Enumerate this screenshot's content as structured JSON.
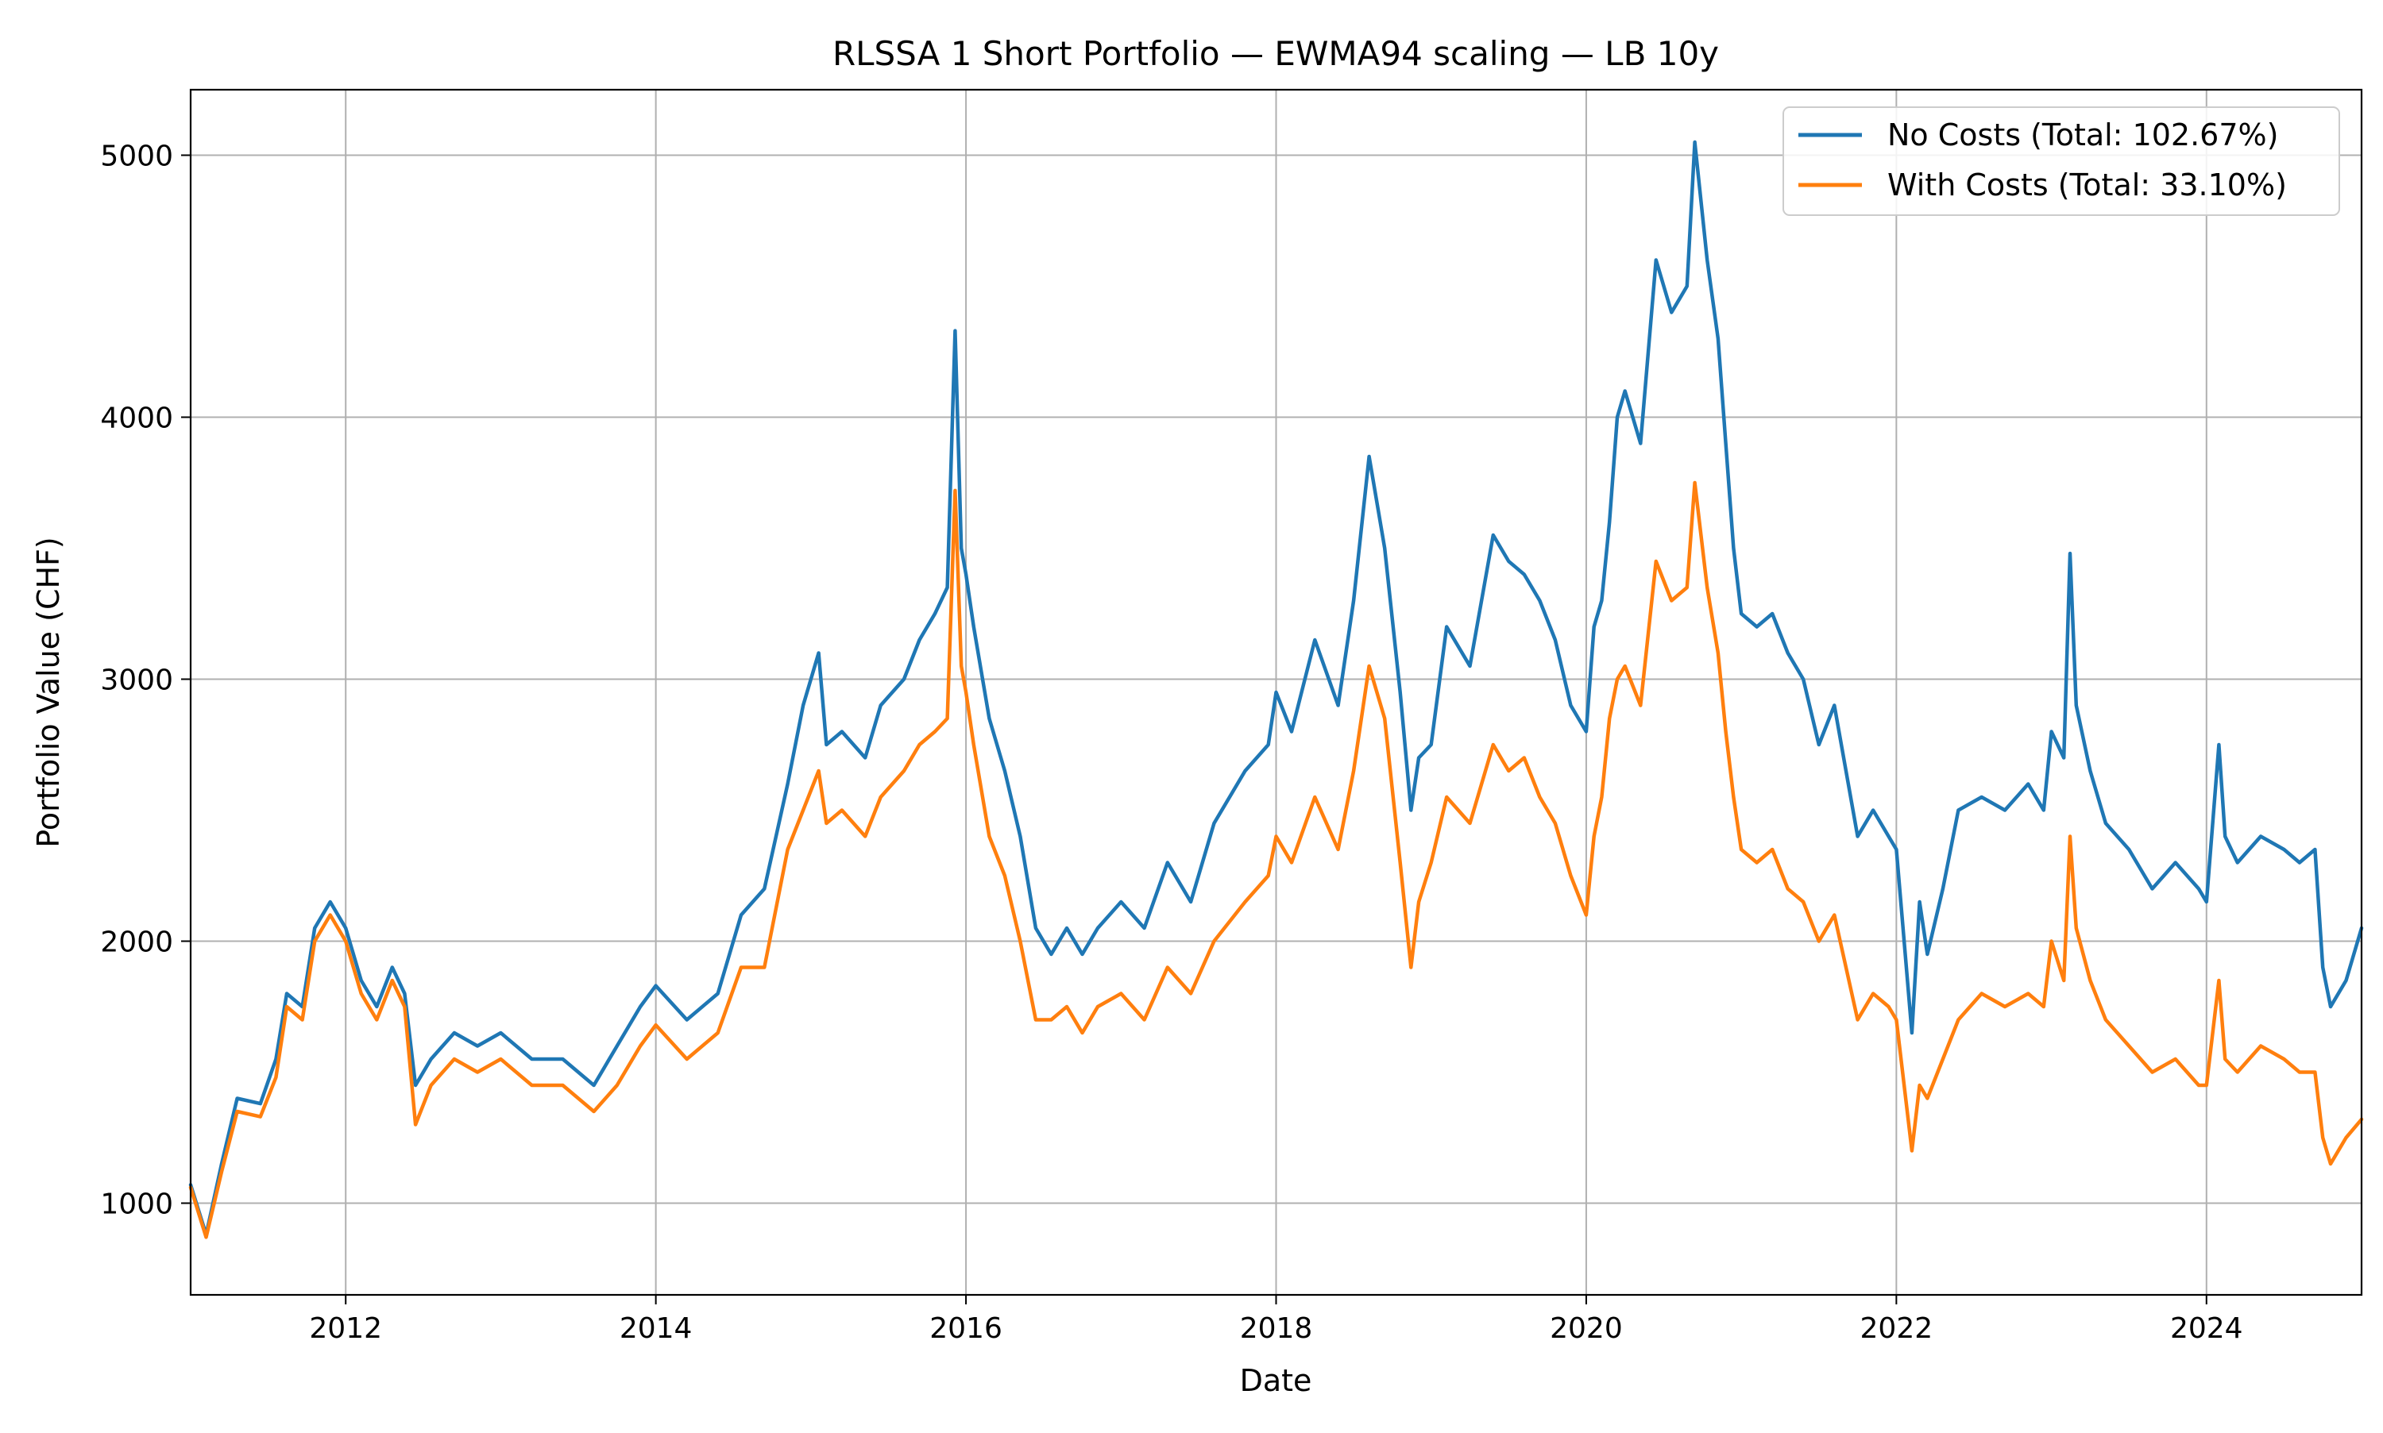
{
  "chart_data": {
    "type": "line",
    "title": "RLSSA 1 Short Portfolio — EWMA94 scaling — LB 10y",
    "xlabel": "Date",
    "ylabel": "Portfolio Value (CHF)",
    "xlim": [
      2011.0,
      2025.0
    ],
    "ylim": [
      650,
      5250
    ],
    "xticks": [
      2012,
      2014,
      2016,
      2018,
      2020,
      2022,
      2024
    ],
    "xtick_labels": [
      "2012",
      "2014",
      "2016",
      "2018",
      "2020",
      "2022",
      "2024"
    ],
    "yticks": [
      1000,
      2000,
      3000,
      4000,
      5000
    ],
    "ytick_labels": [
      "1000",
      "2000",
      "3000",
      "4000",
      "5000"
    ],
    "grid": true,
    "legend_position": "top-right",
    "series": [
      {
        "name": "No Costs (Total: 102.67%)",
        "color": "#1f77b4",
        "x": [
          2011.0,
          2011.1,
          2011.2,
          2011.3,
          2011.45,
          2011.55,
          2011.62,
          2011.72,
          2011.8,
          2011.9,
          2012.0,
          2012.1,
          2012.2,
          2012.3,
          2012.38,
          2012.45,
          2012.55,
          2012.7,
          2012.85,
          2013.0,
          2013.2,
          2013.4,
          2013.6,
          2013.75,
          2013.9,
          2014.0,
          2014.2,
          2014.4,
          2014.55,
          2014.7,
          2014.85,
          2014.95,
          2015.05,
          2015.1,
          2015.2,
          2015.35,
          2015.45,
          2015.6,
          2015.7,
          2015.8,
          2015.88,
          2015.93,
          2015.97,
          2016.0,
          2016.05,
          2016.15,
          2016.25,
          2016.35,
          2016.45,
          2016.55,
          2016.65,
          2016.75,
          2016.85,
          2017.0,
          2017.15,
          2017.3,
          2017.45,
          2017.6,
          2017.8,
          2017.95,
          2018.0,
          2018.1,
          2018.25,
          2018.4,
          2018.5,
          2018.6,
          2018.7,
          2018.8,
          2018.87,
          2018.92,
          2019.0,
          2019.1,
          2019.25,
          2019.4,
          2019.5,
          2019.6,
          2019.7,
          2019.8,
          2019.9,
          2020.0,
          2020.05,
          2020.1,
          2020.15,
          2020.2,
          2020.25,
          2020.35,
          2020.45,
          2020.55,
          2020.65,
          2020.7,
          2020.78,
          2020.85,
          2020.9,
          2020.95,
          2021.0,
          2021.1,
          2021.2,
          2021.3,
          2021.4,
          2021.5,
          2021.6,
          2021.75,
          2021.85,
          2021.95,
          2022.0,
          2022.1,
          2022.15,
          2022.2,
          2022.3,
          2022.4,
          2022.55,
          2022.7,
          2022.85,
          2022.95,
          2023.0,
          2023.08,
          2023.12,
          2023.16,
          2023.25,
          2023.35,
          2023.5,
          2023.65,
          2023.8,
          2023.95,
          2024.0,
          2024.08,
          2024.12,
          2024.2,
          2024.35,
          2024.5,
          2024.6,
          2024.7,
          2024.75,
          2024.8,
          2024.9,
          2025.0
        ],
        "y": [
          1070,
          880,
          1150,
          1400,
          1380,
          1550,
          1800,
          1750,
          2050,
          2150,
          2050,
          1850,
          1750,
          1900,
          1800,
          1450,
          1550,
          1650,
          1600,
          1650,
          1550,
          1550,
          1450,
          1600,
          1750,
          1830,
          1700,
          1800,
          2100,
          2200,
          2600,
          2900,
          3100,
          2750,
          2800,
          2700,
          2900,
          3000,
          3150,
          3250,
          3350,
          4330,
          3500,
          3400,
          3200,
          2850,
          2650,
          2400,
          2050,
          1950,
          2050,
          1950,
          2050,
          2150,
          2050,
          2300,
          2150,
          2450,
          2650,
          2750,
          2950,
          2800,
          3150,
          2900,
          3300,
          3850,
          3500,
          2950,
          2500,
          2700,
          2750,
          3200,
          3050,
          3550,
          3450,
          3400,
          3300,
          3150,
          2900,
          2800,
          3200,
          3300,
          3600,
          4000,
          4100,
          3900,
          4600,
          4400,
          4500,
          5050,
          4600,
          4300,
          3900,
          3500,
          3250,
          3200,
          3250,
          3100,
          3000,
          2750,
          2900,
          2400,
          2500,
          2400,
          2350,
          1650,
          2150,
          1950,
          2200,
          2500,
          2550,
          2500,
          2600,
          2500,
          2800,
          2700,
          3480,
          2900,
          2650,
          2450,
          2350,
          2200,
          2300,
          2200,
          2150,
          2750,
          2400,
          2300,
          2400,
          2350,
          2300,
          2350,
          1900,
          1750,
          1850,
          2050
        ]
      },
      {
        "name": "With Costs (Total: 33.10%)",
        "color": "#ff7f0e",
        "x": [
          2011.0,
          2011.1,
          2011.2,
          2011.3,
          2011.45,
          2011.55,
          2011.62,
          2011.72,
          2011.8,
          2011.9,
          2012.0,
          2012.1,
          2012.2,
          2012.3,
          2012.38,
          2012.45,
          2012.55,
          2012.7,
          2012.85,
          2013.0,
          2013.2,
          2013.4,
          2013.6,
          2013.75,
          2013.9,
          2014.0,
          2014.2,
          2014.4,
          2014.55,
          2014.7,
          2014.85,
          2014.95,
          2015.05,
          2015.1,
          2015.2,
          2015.35,
          2015.45,
          2015.6,
          2015.7,
          2015.8,
          2015.88,
          2015.93,
          2015.97,
          2016.0,
          2016.05,
          2016.15,
          2016.25,
          2016.35,
          2016.45,
          2016.55,
          2016.65,
          2016.75,
          2016.85,
          2017.0,
          2017.15,
          2017.3,
          2017.45,
          2017.6,
          2017.8,
          2017.95,
          2018.0,
          2018.1,
          2018.25,
          2018.4,
          2018.5,
          2018.6,
          2018.7,
          2018.8,
          2018.87,
          2018.92,
          2019.0,
          2019.1,
          2019.25,
          2019.4,
          2019.5,
          2019.6,
          2019.7,
          2019.8,
          2019.9,
          2020.0,
          2020.05,
          2020.1,
          2020.15,
          2020.2,
          2020.25,
          2020.35,
          2020.45,
          2020.55,
          2020.65,
          2020.7,
          2020.78,
          2020.85,
          2020.9,
          2020.95,
          2021.0,
          2021.1,
          2021.2,
          2021.3,
          2021.4,
          2021.5,
          2021.6,
          2021.75,
          2021.85,
          2021.95,
          2022.0,
          2022.1,
          2022.15,
          2022.2,
          2022.3,
          2022.4,
          2022.55,
          2022.7,
          2022.85,
          2022.95,
          2023.0,
          2023.08,
          2023.12,
          2023.16,
          2023.25,
          2023.35,
          2023.5,
          2023.65,
          2023.8,
          2023.95,
          2024.0,
          2024.08,
          2024.12,
          2024.2,
          2024.35,
          2024.5,
          2024.6,
          2024.7,
          2024.75,
          2024.8,
          2024.9,
          2025.0
        ],
        "y": [
          1060,
          870,
          1120,
          1350,
          1330,
          1480,
          1750,
          1700,
          2000,
          2100,
          2000,
          1800,
          1700,
          1850,
          1750,
          1300,
          1450,
          1550,
          1500,
          1550,
          1450,
          1450,
          1350,
          1450,
          1600,
          1680,
          1550,
          1650,
          1900,
          1900,
          2350,
          2500,
          2650,
          2450,
          2500,
          2400,
          2550,
          2650,
          2750,
          2800,
          2850,
          3720,
          3050,
          2950,
          2750,
          2400,
          2250,
          2000,
          1700,
          1700,
          1750,
          1650,
          1750,
          1800,
          1700,
          1900,
          1800,
          2000,
          2150,
          2250,
          2400,
          2300,
          2550,
          2350,
          2650,
          3050,
          2850,
          2300,
          1900,
          2150,
          2300,
          2550,
          2450,
          2750,
          2650,
          2700,
          2550,
          2450,
          2250,
          2100,
          2400,
          2550,
          2850,
          3000,
          3050,
          2900,
          3450,
          3300,
          3350,
          3750,
          3350,
          3100,
          2800,
          2550,
          2350,
          2300,
          2350,
          2200,
          2150,
          2000,
          2100,
          1700,
          1800,
          1750,
          1700,
          1200,
          1450,
          1400,
          1550,
          1700,
          1800,
          1750,
          1800,
          1750,
          2000,
          1850,
          2400,
          2050,
          1850,
          1700,
          1600,
          1500,
          1550,
          1450,
          1450,
          1850,
          1550,
          1500,
          1600,
          1550,
          1500,
          1500,
          1250,
          1150,
          1250,
          1320
        ]
      }
    ]
  }
}
